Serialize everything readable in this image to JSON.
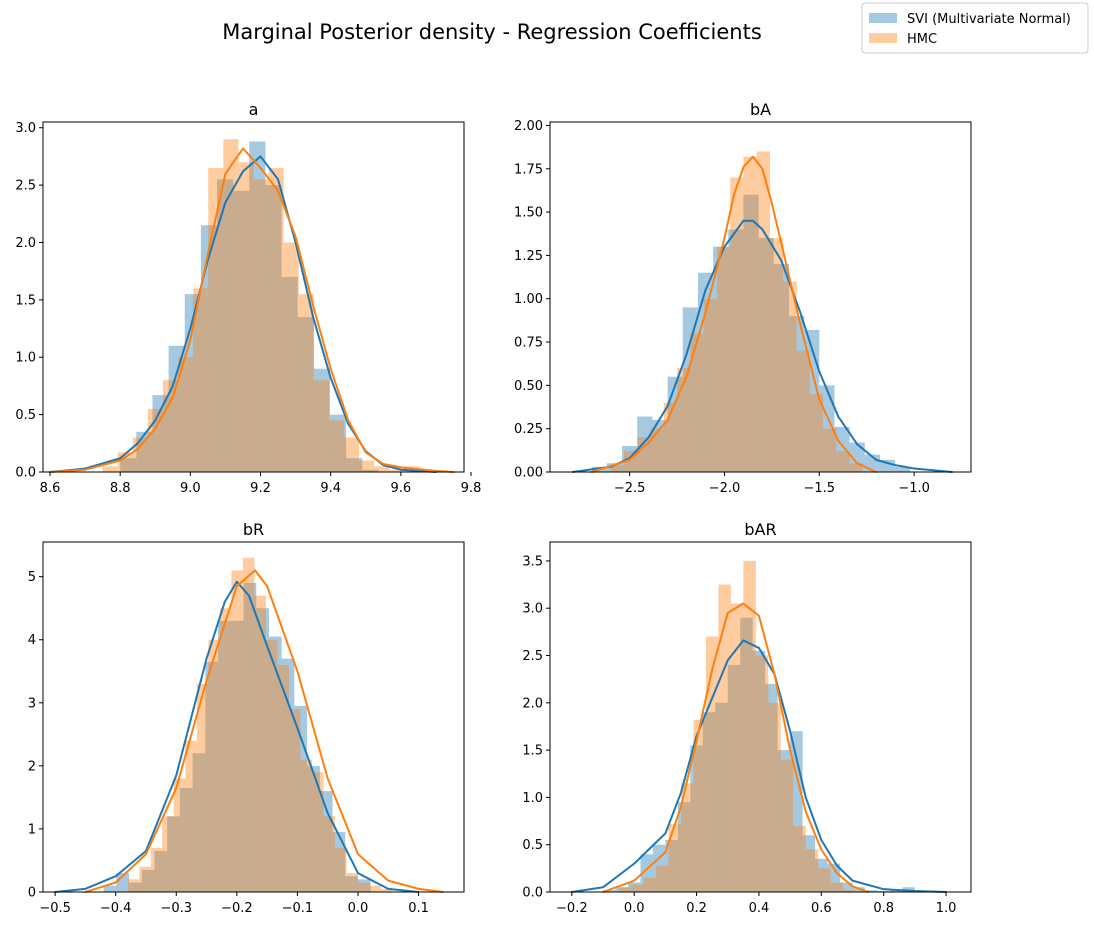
{
  "figure": {
    "suptitle": "Marginal Posterior density - Regression Coefficients",
    "legend": {
      "placement": "top-right",
      "entries": [
        {
          "label": "SVI (Multivariate Normal)",
          "color": "#1f77b4"
        },
        {
          "label": "HMC",
          "color": "#ff7f0e"
        }
      ]
    }
  },
  "colors": {
    "svi": "#1f77b4",
    "hmc": "#ff7f0e",
    "svi_fill_opacity": 0.4,
    "hmc_fill_opacity": 0.4
  },
  "chart_data": [
    {
      "type": "histogram",
      "title": "a",
      "xlim": [
        8.58,
        9.78
      ],
      "ylim": [
        0,
        3.05
      ],
      "xticks": [
        8.6,
        8.8,
        9.0,
        9.2,
        9.4,
        9.6,
        9.8
      ],
      "xtick_labels": [
        "8.6",
        "8.8",
        "9.0",
        "9.2",
        "9.4",
        "9.6",
        "9.8"
      ],
      "yticks": [
        0,
        0.5,
        1.0,
        1.5,
        2.0,
        2.5,
        3.0
      ],
      "ytick_labels": [
        "0.0",
        "0.5",
        "1.0",
        "1.5",
        "2.0",
        "2.5",
        "3.0"
      ],
      "series": [
        {
          "name": "SVI (Multivariate Normal)",
          "bin_edges": [
            8.8,
            8.846,
            8.892,
            8.938,
            8.984,
            9.03,
            9.076,
            9.122,
            9.168,
            9.214,
            9.26,
            9.306,
            9.352,
            9.398,
            9.444,
            9.49,
            9.536
          ],
          "heights": [
            0.12,
            0.35,
            0.67,
            1.1,
            1.55,
            2.15,
            2.55,
            2.45,
            2.88,
            2.5,
            1.7,
            1.35,
            0.9,
            0.5,
            0.12,
            0.02
          ],
          "kde_x": [
            8.6,
            8.7,
            8.8,
            8.85,
            8.9,
            8.95,
            9.0,
            9.05,
            9.1,
            9.15,
            9.2,
            9.25,
            9.3,
            9.35,
            9.4,
            9.45,
            9.5,
            9.55,
            9.6,
            9.7
          ],
          "kde_y": [
            0.0,
            0.03,
            0.12,
            0.25,
            0.45,
            0.75,
            1.25,
            1.85,
            2.35,
            2.62,
            2.75,
            2.55,
            2.0,
            1.35,
            0.82,
            0.42,
            0.18,
            0.06,
            0.02,
            0.0
          ]
        },
        {
          "name": "HMC",
          "bin_edges": [
            8.75,
            8.793,
            8.836,
            8.879,
            8.922,
            8.965,
            9.008,
            9.051,
            9.094,
            9.137,
            9.18,
            9.223,
            9.266,
            9.309,
            9.352,
            9.395,
            9.438,
            9.481,
            9.524,
            9.567,
            9.61,
            9.653
          ],
          "heights": [
            0.05,
            0.17,
            0.3,
            0.55,
            0.8,
            1.0,
            1.6,
            2.65,
            2.9,
            2.7,
            2.55,
            2.65,
            2.0,
            1.55,
            0.8,
            0.45,
            0.3,
            0.1,
            0.05,
            0.02,
            0.05
          ],
          "kde_x": [
            8.6,
            8.7,
            8.8,
            8.85,
            8.9,
            8.95,
            9.0,
            9.05,
            9.1,
            9.15,
            9.2,
            9.25,
            9.3,
            9.35,
            9.4,
            9.45,
            9.5,
            9.55,
            9.6,
            9.7,
            9.75
          ],
          "kde_y": [
            0.0,
            0.02,
            0.1,
            0.2,
            0.38,
            0.65,
            1.15,
            1.9,
            2.6,
            2.82,
            2.65,
            2.45,
            2.05,
            1.45,
            0.9,
            0.45,
            0.17,
            0.07,
            0.04,
            0.01,
            0.0
          ]
        }
      ]
    },
    {
      "type": "histogram",
      "title": "bA",
      "xlim": [
        -2.92,
        -0.7
      ],
      "ylim": [
        0,
        2.02
      ],
      "xticks": [
        -2.5,
        -2.0,
        -1.5,
        -1.0
      ],
      "xtick_labels": [
        "−2.5",
        "−2.0",
        "−1.5",
        "−1.0"
      ],
      "yticks": [
        0,
        0.25,
        0.5,
        0.75,
        1.0,
        1.25,
        1.5,
        1.75,
        2.0
      ],
      "ytick_labels": [
        "0.00",
        "0.25",
        "0.50",
        "0.75",
        "1.00",
        "1.25",
        "1.50",
        "1.75",
        "2.00"
      ],
      "series": [
        {
          "name": "SVI (Multivariate Normal)",
          "bin_edges": [
            -2.7,
            -2.62,
            -2.54,
            -2.46,
            -2.38,
            -2.3,
            -2.22,
            -2.14,
            -2.06,
            -1.98,
            -1.9,
            -1.82,
            -1.74,
            -1.66,
            -1.58,
            -1.5,
            -1.42,
            -1.34,
            -1.26,
            -1.18,
            -1.1,
            -1.02
          ],
          "heights": [
            0.03,
            0.05,
            0.15,
            0.32,
            0.3,
            0.55,
            0.95,
            1.15,
            1.3,
            1.4,
            1.6,
            1.35,
            1.2,
            0.9,
            0.82,
            0.5,
            0.26,
            0.17,
            0.1,
            0.07,
            0.03
          ],
          "kde_x": [
            -2.8,
            -2.6,
            -2.5,
            -2.4,
            -2.3,
            -2.2,
            -2.1,
            -2.0,
            -1.9,
            -1.85,
            -1.8,
            -1.7,
            -1.6,
            -1.5,
            -1.4,
            -1.3,
            -1.2,
            -1.1,
            -1.0,
            -0.8
          ],
          "kde_y": [
            0.0,
            0.03,
            0.08,
            0.2,
            0.38,
            0.68,
            1.05,
            1.3,
            1.45,
            1.45,
            1.4,
            1.22,
            0.92,
            0.58,
            0.32,
            0.16,
            0.07,
            0.04,
            0.02,
            0.0
          ]
        },
        {
          "name": "HMC",
          "bin_edges": [
            -2.6,
            -2.53,
            -2.46,
            -2.39,
            -2.32,
            -2.25,
            -2.18,
            -2.11,
            -2.04,
            -1.97,
            -1.9,
            -1.83,
            -1.76,
            -1.69,
            -1.62,
            -1.55,
            -1.48,
            -1.41,
            -1.34,
            -1.27
          ],
          "heights": [
            0.04,
            0.12,
            0.2,
            0.25,
            0.4,
            0.6,
            0.8,
            1.0,
            1.3,
            1.7,
            1.82,
            1.85,
            1.35,
            1.1,
            0.7,
            0.45,
            0.25,
            0.12,
            0.05
          ],
          "kde_x": [
            -2.7,
            -2.5,
            -2.4,
            -2.3,
            -2.2,
            -2.1,
            -2.0,
            -1.95,
            -1.9,
            -1.85,
            -1.8,
            -1.75,
            -1.7,
            -1.6,
            -1.5,
            -1.4,
            -1.3,
            -1.2
          ],
          "kde_y": [
            0.0,
            0.07,
            0.17,
            0.3,
            0.55,
            0.92,
            1.35,
            1.6,
            1.76,
            1.82,
            1.75,
            1.55,
            1.32,
            0.85,
            0.42,
            0.18,
            0.05,
            0.0
          ]
        }
      ]
    },
    {
      "type": "histogram",
      "title": "bR",
      "xlim": [
        -0.52,
        0.175
      ],
      "ylim": [
        0,
        5.55
      ],
      "xticks": [
        -0.5,
        -0.4,
        -0.3,
        -0.2,
        -0.1,
        0.0,
        0.1
      ],
      "xtick_labels": [
        "−0.5",
        "−0.4",
        "−0.3",
        "−0.2",
        "−0.1",
        "0.0",
        "0.1"
      ],
      "yticks": [
        0,
        1,
        2,
        3,
        4,
        5
      ],
      "ytick_labels": [
        "0",
        "1",
        "2",
        "3",
        "4",
        "5"
      ],
      "series": [
        {
          "name": "SVI (Multivariate Normal)",
          "bin_edges": [
            -0.42,
            -0.399,
            -0.378,
            -0.357,
            -0.336,
            -0.315,
            -0.294,
            -0.273,
            -0.252,
            -0.231,
            -0.21,
            -0.189,
            -0.168,
            -0.147,
            -0.126,
            -0.105,
            -0.084,
            -0.063,
            -0.042,
            -0.021,
            0.0,
            0.021
          ],
          "heights": [
            0.1,
            0.3,
            0.15,
            0.35,
            0.65,
            1.2,
            1.65,
            2.2,
            3.65,
            4.3,
            4.3,
            4.9,
            4.5,
            4.05,
            3.7,
            2.95,
            2.0,
            1.6,
            0.95,
            0.25,
            0.2
          ],
          "kde_x": [
            -0.5,
            -0.45,
            -0.4,
            -0.35,
            -0.3,
            -0.25,
            -0.22,
            -0.2,
            -0.18,
            -0.15,
            -0.1,
            -0.05,
            0.0,
            0.05,
            0.1
          ],
          "kde_y": [
            0.0,
            0.05,
            0.25,
            0.65,
            1.85,
            3.7,
            4.6,
            4.92,
            4.7,
            3.9,
            2.6,
            1.25,
            0.3,
            0.05,
            0.0
          ]
        },
        {
          "name": "HMC",
          "bin_edges": [
            -0.38,
            -0.361,
            -0.342,
            -0.323,
            -0.304,
            -0.285,
            -0.266,
            -0.247,
            -0.228,
            -0.209,
            -0.19,
            -0.171,
            -0.152,
            -0.133,
            -0.114,
            -0.095,
            -0.076,
            -0.057,
            -0.038,
            -0.019,
            0.0,
            0.019,
            0.038,
            0.057
          ],
          "heights": [
            0.2,
            0.4,
            0.7,
            1.2,
            1.8,
            2.4,
            3.3,
            4.0,
            4.5,
            5.1,
            5.3,
            4.7,
            4.0,
            3.6,
            2.9,
            2.1,
            1.9,
            1.2,
            0.7,
            0.3,
            0.15,
            0.1,
            0.05
          ],
          "kde_x": [
            -0.45,
            -0.4,
            -0.35,
            -0.3,
            -0.25,
            -0.2,
            -0.17,
            -0.15,
            -0.1,
            -0.05,
            0.0,
            0.05,
            0.1,
            0.14
          ],
          "kde_y": [
            0.0,
            0.15,
            0.6,
            1.65,
            3.35,
            4.85,
            5.1,
            4.85,
            3.5,
            1.8,
            0.6,
            0.18,
            0.05,
            0.0
          ]
        }
      ]
    },
    {
      "type": "histogram",
      "title": "bAR",
      "xlim": [
        -0.27,
        1.08
      ],
      "ylim": [
        0,
        3.7
      ],
      "xticks": [
        -0.2,
        0.0,
        0.2,
        0.4,
        0.6,
        0.8,
        1.0
      ],
      "xtick_labels": [
        "−0.2",
        "0.0",
        "0.2",
        "0.4",
        "0.6",
        "0.8",
        "1.0"
      ],
      "yticks": [
        0,
        0.5,
        1.0,
        1.5,
        2.0,
        2.5,
        3.0,
        3.5
      ],
      "ytick_labels": [
        "0.0",
        "0.5",
        "1.0",
        "1.5",
        "2.0",
        "2.5",
        "3.0",
        "3.5"
      ],
      "series": [
        {
          "name": "SVI (Multivariate Normal)",
          "bin_edges": [
            -0.1,
            -0.06,
            -0.02,
            0.02,
            0.06,
            0.1,
            0.14,
            0.18,
            0.22,
            0.26,
            0.3,
            0.34,
            0.38,
            0.42,
            0.46,
            0.5,
            0.54,
            0.58,
            0.62,
            0.66,
            0.7,
            0.74,
            0.78,
            0.82,
            0.86,
            0.9
          ],
          "heights": [
            0.02,
            0.05,
            0.1,
            0.4,
            0.5,
            0.55,
            0.95,
            1.55,
            1.9,
            2.0,
            2.4,
            2.9,
            2.55,
            2.2,
            1.5,
            1.7,
            0.6,
            0.35,
            0.3,
            0.1,
            0.05,
            0.02,
            0.01,
            0.02,
            0.05
          ],
          "kde_x": [
            -0.2,
            -0.1,
            0.0,
            0.1,
            0.15,
            0.2,
            0.25,
            0.3,
            0.35,
            0.4,
            0.45,
            0.5,
            0.55,
            0.6,
            0.65,
            0.7,
            0.8,
            0.9,
            1.0
          ],
          "kde_y": [
            0.0,
            0.05,
            0.3,
            0.62,
            1.05,
            1.65,
            2.05,
            2.45,
            2.66,
            2.58,
            2.3,
            1.7,
            1.0,
            0.55,
            0.28,
            0.12,
            0.03,
            0.01,
            0.0
          ]
        },
        {
          "name": "HMC",
          "bin_edges": [
            -0.05,
            -0.01,
            0.03,
            0.07,
            0.11,
            0.15,
            0.19,
            0.23,
            0.27,
            0.31,
            0.35,
            0.39,
            0.43,
            0.47,
            0.51,
            0.55,
            0.59,
            0.63,
            0.67,
            0.71
          ],
          "heights": [
            0.05,
            0.08,
            0.15,
            0.28,
            0.72,
            1.15,
            1.82,
            2.7,
            3.25,
            3.05,
            3.5,
            2.5,
            2.0,
            1.4,
            0.7,
            0.45,
            0.25,
            0.1,
            0.02
          ],
          "kde_x": [
            -0.1,
            0.0,
            0.1,
            0.15,
            0.2,
            0.25,
            0.3,
            0.35,
            0.4,
            0.45,
            0.5,
            0.55,
            0.6,
            0.65,
            0.7,
            0.75
          ],
          "kde_y": [
            0.0,
            0.12,
            0.42,
            0.9,
            1.6,
            2.35,
            2.95,
            3.05,
            2.92,
            2.3,
            1.5,
            0.85,
            0.45,
            0.2,
            0.06,
            0.0
          ]
        }
      ]
    }
  ]
}
